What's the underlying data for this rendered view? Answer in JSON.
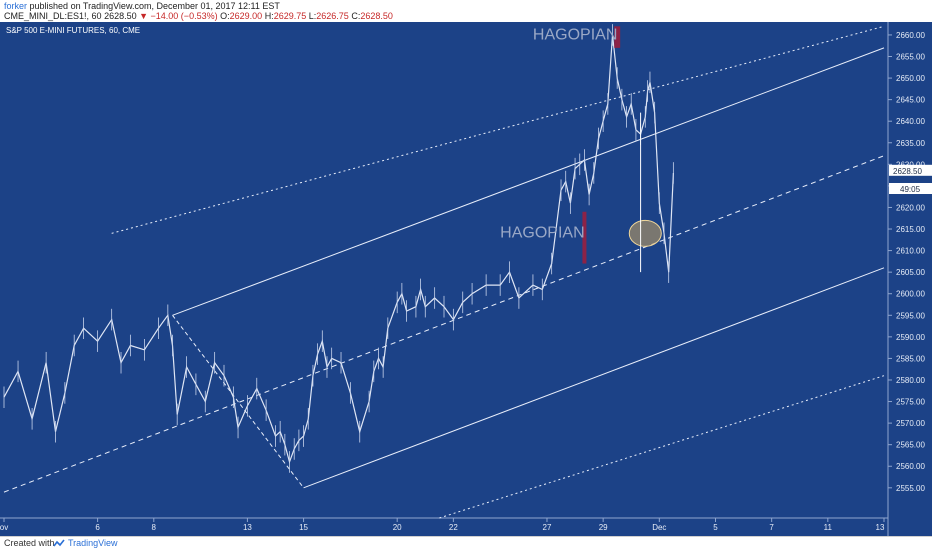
{
  "header": {
    "author": "forker",
    "published": "published on TradingView.com, December 01, 2017 12:11 EST",
    "symbol": "CME_MINI_DL:ES1!, 60",
    "change": "▼ −14.00 (−0.53%)",
    "ohlc": {
      "o_label": "O:",
      "o": "2629.00",
      "h_label": "H:",
      "h": "2629.75",
      "l_label": "L:",
      "l": "2626.75",
      "c_label": "C:",
      "c": "2628.50"
    },
    "last_price": "2628.50"
  },
  "chart_title": "S&P 500 E-MINI FUTURES, 60, CME",
  "annotations": {
    "label_top": "HAGOPIAN",
    "label_mid": "HAGOPIAN"
  },
  "price_badge": "2628.50",
  "timer_badge": "49:05",
  "footer": {
    "created_with": "Created with",
    "brand": "TradingView"
  },
  "colors": {
    "background": "#1c4287",
    "price_line": "#ffffff",
    "marker_red": "#a01d3c",
    "ellipse_fill": "#c9a45c"
  },
  "chart_data": {
    "type": "line",
    "title": "S&P 500 E-MINI FUTURES, 60, CME",
    "ylim": [
      2548,
      2663
    ],
    "y_ticks": [
      2555,
      2560,
      2565,
      2570,
      2575,
      2580,
      2585,
      2590,
      2595,
      2600,
      2605,
      2610,
      2615,
      2620,
      2625,
      2630,
      2635,
      2640,
      2645,
      2650,
      2655,
      2660
    ],
    "y_tick_labels": [
      "2555.00",
      "2560.00",
      "2565.00",
      "2570.00",
      "2575.00",
      "2580.00",
      "2585.00",
      "2590.00",
      "2595.00",
      "2600.00",
      "2605.00",
      "2610.00",
      "2615.00",
      "2620.00",
      "2625.00",
      "2630.00",
      "2635.00",
      "2640.00",
      "2645.00",
      "2650.00",
      "2655.00",
      "2660.00"
    ],
    "x_tick_labels": [
      "ov",
      "6",
      "8",
      "13",
      "15",
      "20",
      "22",
      "27",
      "29",
      "Dec",
      "5",
      "7",
      "11",
      "13"
    ],
    "x_tick_index": [
      0,
      40,
      64,
      104,
      128,
      168,
      192,
      232,
      256,
      280,
      304,
      328,
      352,
      376
    ],
    "x_span": [
      0,
      376
    ],
    "series": [
      {
        "x": [
          0,
          6,
          12,
          18,
          22,
          26,
          30,
          34,
          40,
          46,
          50,
          54,
          60,
          66,
          70,
          72,
          74,
          78,
          82,
          86,
          90,
          94,
          98,
          100,
          104,
          108,
          112,
          116,
          118,
          120,
          122,
          124,
          126,
          128,
          130,
          132,
          134,
          136,
          138,
          140,
          144,
          148,
          152,
          156,
          158,
          160,
          162,
          164,
          168,
          170,
          172,
          176,
          178,
          180,
          184,
          188,
          192,
          196,
          200,
          206,
          212,
          216,
          220,
          226,
          230,
          234,
          238,
          240,
          242,
          244,
          246,
          248,
          250,
          252,
          254,
          256,
          258,
          260,
          262,
          264,
          266,
          268,
          270,
          272,
          274,
          275,
          276,
          278,
          280,
          282,
          284,
          286
        ],
        "values": [
          2576,
          2582,
          2571,
          2584,
          2568,
          2577,
          2588,
          2592,
          2589,
          2594,
          2584,
          2588,
          2587,
          2592,
          2595,
          2588,
          2572,
          2583,
          2579,
          2575,
          2584,
          2581,
          2576,
          2569,
          2574,
          2578,
          2573,
          2567,
          2568,
          2565,
          2561,
          2564,
          2566,
          2567,
          2571,
          2581,
          2586,
          2589,
          2583,
          2585,
          2584,
          2577,
          2568,
          2575,
          2582,
          2585,
          2583,
          2592,
          2598,
          2600,
          2596,
          2597,
          2601,
          2597,
          2599,
          2597,
          2594,
          2598,
          2600,
          2602,
          2602,
          2605,
          2599,
          2602,
          2601,
          2607,
          2624,
          2626,
          2621,
          2629,
          2630,
          2631,
          2623,
          2628,
          2636,
          2640,
          2644,
          2660,
          2650,
          2645,
          2641,
          2644,
          2638,
          2637,
          2641,
          2647,
          2649,
          2642,
          2621,
          2614,
          2605,
          2628
        ]
      }
    ],
    "channel_lines": {
      "upper_solid": [
        [
          72,
          2595.0
        ],
        [
          376,
          2657.0
        ]
      ],
      "median_dashed": [
        [
          0,
          2554.0
        ],
        [
          376,
          2632.0
        ]
      ],
      "lower_solid": [
        [
          128,
          2555.0
        ],
        [
          376,
          2606.0
        ]
      ],
      "upper_dotted": [
        [
          46,
          2614.0
        ],
        [
          376,
          2662.0
        ]
      ],
      "lower_dotted": [
        [
          186,
          2548.0
        ],
        [
          376,
          2581.0
        ]
      ]
    }
  }
}
